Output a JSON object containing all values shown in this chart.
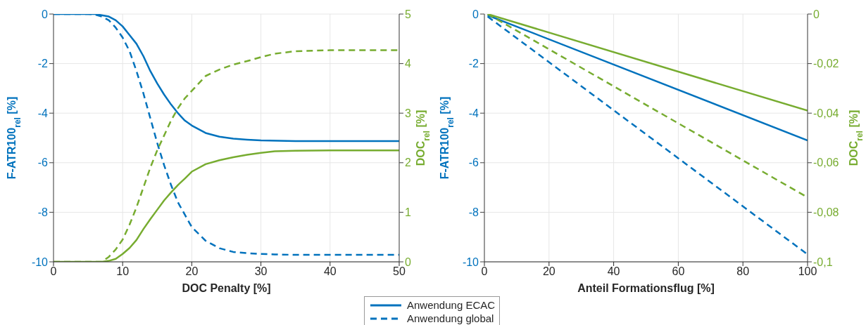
{
  "chart_data": [
    {
      "type": "line",
      "xlabel": "DOC Penalty [%]",
      "ylabel": "F-ATR100$_{rel}$ [%]",
      "y2label": "DOC$_{rel}$ [%]",
      "xlim": [
        0,
        50
      ],
      "xticks": [
        0,
        10,
        20,
        30,
        40,
        50
      ],
      "ylim": [
        -10,
        0
      ],
      "yticks": [
        -10,
        -8,
        -6,
        -4,
        -2,
        0
      ],
      "y2lim": [
        0,
        5
      ],
      "y2ticks": [
        0,
        1,
        2,
        3,
        4,
        5
      ],
      "grid": true,
      "legend": "bottom",
      "series": [
        {
          "name": "Anwendung ECAC",
          "color": "#0072bd",
          "line_style": "solid",
          "x": [
            0,
            5,
            6,
            7,
            8,
            9,
            10,
            11,
            12,
            13,
            14,
            15,
            16,
            17,
            18,
            19,
            20,
            22,
            24,
            26,
            28,
            30,
            35,
            40,
            50
          ],
          "values": [
            0,
            0,
            0,
            -0.05,
            -0.1,
            -0.25,
            -0.5,
            -0.85,
            -1.2,
            -1.7,
            -2.3,
            -2.8,
            -3.25,
            -3.65,
            -4.0,
            -4.3,
            -4.5,
            -4.8,
            -4.95,
            -5.03,
            -5.07,
            -5.1,
            -5.13,
            -5.13,
            -5.13
          ]
        },
        {
          "name": "Anwendung global",
          "color": "#0072bd",
          "line_style": "dashed",
          "x": [
            0,
            5,
            6,
            7,
            8,
            9,
            10,
            11,
            12,
            13,
            14,
            15,
            16,
            17,
            18,
            19,
            20,
            22,
            24,
            26,
            28,
            30,
            32,
            35,
            50
          ],
          "values": [
            0,
            0,
            -0.02,
            -0.1,
            -0.25,
            -0.55,
            -0.95,
            -1.5,
            -2.3,
            -3.2,
            -4.2,
            -5.2,
            -6.1,
            -6.9,
            -7.6,
            -8.1,
            -8.6,
            -9.15,
            -9.45,
            -9.6,
            -9.65,
            -9.68,
            -9.7,
            -9.72,
            -9.72
          ]
        },
        {
          "color": "#77ac30",
          "line_style": "solid",
          "axis": "y2",
          "x": [
            0,
            5,
            7,
            8,
            9,
            10,
            11,
            12,
            13,
            14,
            15,
            16,
            17,
            18,
            19,
            20,
            22,
            24,
            26,
            28,
            30,
            32,
            35,
            40,
            50
          ],
          "values": [
            0,
            0,
            0,
            0.02,
            0.06,
            0.16,
            0.28,
            0.44,
            0.66,
            0.86,
            1.05,
            1.24,
            1.4,
            1.55,
            1.68,
            1.82,
            1.97,
            2.05,
            2.11,
            2.16,
            2.2,
            2.23,
            2.24,
            2.25,
            2.25
          ]
        },
        {
          "color": "#77ac30",
          "line_style": "dashed",
          "axis": "y2",
          "x": [
            0,
            5,
            7,
            8,
            9,
            10,
            11,
            12,
            13,
            14,
            15,
            16,
            17,
            18,
            19,
            20,
            22,
            24,
            26,
            28,
            30,
            32,
            35,
            40,
            50
          ],
          "values": [
            0,
            0,
            0,
            0.1,
            0.25,
            0.45,
            0.75,
            1.1,
            1.5,
            1.9,
            2.25,
            2.55,
            2.85,
            3.1,
            3.3,
            3.45,
            3.75,
            3.88,
            3.98,
            4.05,
            4.13,
            4.2,
            4.25,
            4.27,
            4.27
          ]
        }
      ]
    },
    {
      "type": "line",
      "xlabel": "Anteil Formationsflug [%]",
      "ylabel": "F-ATR100$_{rel}$ [%]",
      "y2label": "DOC$_{rel}$ [%]",
      "xlim": [
        0,
        100
      ],
      "xticks": [
        0,
        20,
        40,
        60,
        80,
        100
      ],
      "ylim": [
        -10,
        0
      ],
      "yticks": [
        -10,
        -8,
        -6,
        -4,
        -2,
        0
      ],
      "y2lim": [
        -0.1,
        0
      ],
      "y2ticks": [
        {
          "value": -0.1,
          "label": "-0,1"
        },
        {
          "value": -0.08,
          "label": "-0,08"
        },
        {
          "value": -0.06,
          "label": "-0,06"
        },
        {
          "value": -0.04,
          "label": "-0,04"
        },
        {
          "value": -0.02,
          "label": "-0,02"
        },
        0
      ],
      "grid": true,
      "legend": false,
      "series": [
        {
          "color": "#0072bd",
          "line_style": "solid",
          "x": [
            1,
            100
          ],
          "values": [
            -0.05,
            -5.1
          ]
        },
        {
          "color": "#0072bd",
          "line_style": "dashed",
          "x": [
            1,
            100
          ],
          "values": [
            -0.1,
            -9.7
          ]
        },
        {
          "color": "#77ac30",
          "line_style": "solid",
          "axis": "y2",
          "x": [
            1,
            100
          ],
          "values": [
            0,
            -0.039
          ]
        },
        {
          "color": "#77ac30",
          "line_style": "dashed",
          "axis": "y2",
          "x": [
            1,
            100
          ],
          "values": [
            0,
            -0.074
          ]
        }
      ]
    }
  ]
}
